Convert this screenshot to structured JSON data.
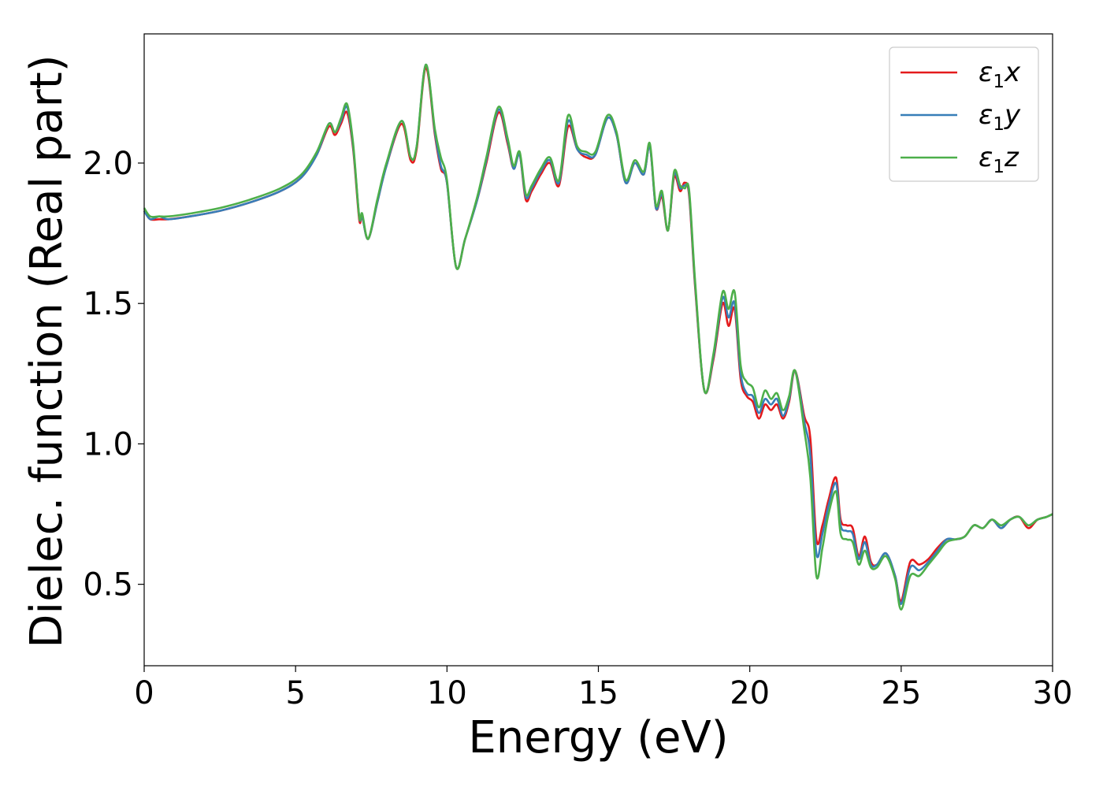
{
  "chart_data": {
    "type": "line",
    "title": "",
    "xlabel": "Energy (eV)",
    "ylabel": "Dielec. function (Real part)",
    "xlim": [
      0,
      30
    ],
    "ylim": [
      0.21,
      2.46
    ],
    "xticks": [
      0,
      5,
      10,
      15,
      20,
      25,
      30
    ],
    "xtick_labels": [
      "0",
      "5",
      "10",
      "15",
      "20",
      "25",
      "30"
    ],
    "yticks": [
      0.5,
      1.0,
      1.5,
      2.0
    ],
    "ytick_labels": [
      "0.5",
      "1.0",
      "1.5",
      "2.0"
    ],
    "grid": false,
    "legend_position": "top-right",
    "series": [
      {
        "name": "ε1x",
        "legend_base": "ε",
        "legend_sub": "1",
        "legend_suffix": "x",
        "color": "#e41a1c",
        "x": [
          0,
          0.2,
          0.5,
          0.8,
          1.5,
          2.5,
          3.5,
          4.5,
          5.2,
          5.7,
          6.1,
          6.3,
          6.5,
          6.7,
          6.9,
          7.1,
          7.2,
          7.4,
          7.7,
          8.0,
          8.5,
          8.8,
          9.0,
          9.3,
          9.6,
          9.8,
          10.0,
          10.3,
          10.6,
          11.0,
          11.3,
          11.7,
          12.0,
          12.2,
          12.4,
          12.6,
          12.8,
          13.1,
          13.4,
          13.7,
          14.0,
          14.3,
          14.6,
          14.9,
          15.3,
          15.6,
          15.9,
          16.2,
          16.5,
          16.7,
          16.9,
          17.1,
          17.3,
          17.5,
          17.7,
          17.85,
          18.0,
          18.2,
          18.5,
          18.8,
          19.1,
          19.3,
          19.5,
          19.7,
          19.9,
          20.1,
          20.3,
          20.5,
          20.7,
          20.9,
          21.1,
          21.3,
          21.5,
          21.8,
          22.0,
          22.2,
          22.4,
          22.6,
          22.85,
          23.0,
          23.2,
          23.4,
          23.6,
          23.8,
          24.0,
          24.2,
          24.5,
          24.8,
          25.0,
          25.3,
          25.6,
          25.9,
          26.2,
          26.5,
          26.8,
          27.1,
          27.4,
          27.7,
          28.0,
          28.3,
          28.6,
          28.9,
          29.2,
          29.5,
          29.8,
          30.0
        ],
        "values": [
          1.83,
          1.8,
          1.8,
          1.8,
          1.81,
          1.83,
          1.86,
          1.9,
          1.95,
          2.03,
          2.13,
          2.1,
          2.14,
          2.18,
          2.05,
          1.8,
          1.81,
          1.73,
          1.86,
          1.99,
          2.14,
          2.01,
          2.05,
          2.34,
          2.1,
          1.98,
          1.93,
          1.63,
          1.73,
          1.87,
          2.0,
          2.18,
          2.07,
          1.98,
          2.03,
          1.87,
          1.9,
          1.96,
          2.0,
          1.92,
          2.13,
          2.05,
          2.02,
          2.03,
          2.16,
          2.1,
          1.93,
          2.0,
          1.96,
          2.06,
          1.84,
          1.88,
          1.76,
          1.95,
          1.9,
          1.93,
          1.88,
          1.55,
          1.19,
          1.3,
          1.5,
          1.42,
          1.48,
          1.23,
          1.17,
          1.15,
          1.09,
          1.14,
          1.12,
          1.14,
          1.09,
          1.15,
          1.26,
          1.1,
          1.02,
          0.66,
          0.71,
          0.8,
          0.88,
          0.73,
          0.71,
          0.7,
          0.6,
          0.67,
          0.58,
          0.57,
          0.61,
          0.53,
          0.44,
          0.58,
          0.57,
          0.59,
          0.63,
          0.66,
          0.66,
          0.67,
          0.71,
          0.7,
          0.73,
          0.7,
          0.73,
          0.74,
          0.7,
          0.73,
          0.74,
          0.75
        ]
      },
      {
        "name": "ε1y",
        "legend_base": "ε",
        "legend_sub": "1",
        "legend_suffix": "y",
        "color": "#377eb8",
        "x": [
          0,
          0.2,
          0.5,
          0.8,
          1.5,
          2.5,
          3.5,
          4.5,
          5.2,
          5.7,
          6.1,
          6.3,
          6.5,
          6.7,
          6.9,
          7.1,
          7.2,
          7.4,
          7.7,
          8.0,
          8.5,
          8.8,
          9.0,
          9.3,
          9.6,
          9.8,
          10.0,
          10.3,
          10.6,
          11.0,
          11.3,
          11.7,
          12.0,
          12.2,
          12.4,
          12.6,
          12.8,
          13.1,
          13.4,
          13.7,
          14.0,
          14.3,
          14.6,
          14.9,
          15.3,
          15.6,
          15.9,
          16.2,
          16.5,
          16.7,
          16.9,
          17.1,
          17.3,
          17.5,
          17.7,
          17.85,
          18.0,
          18.2,
          18.5,
          18.8,
          19.1,
          19.3,
          19.5,
          19.7,
          19.9,
          20.1,
          20.3,
          20.5,
          20.7,
          20.9,
          21.1,
          21.3,
          21.5,
          21.8,
          22.0,
          22.2,
          22.4,
          22.6,
          22.85,
          23.0,
          23.2,
          23.4,
          23.6,
          23.8,
          24.0,
          24.2,
          24.5,
          24.8,
          25.0,
          25.3,
          25.6,
          25.9,
          26.2,
          26.5,
          26.8,
          27.1,
          27.4,
          27.7,
          28.0,
          28.3,
          28.6,
          28.9,
          29.2,
          29.5,
          29.8,
          30.0
        ],
        "values": [
          1.83,
          1.8,
          1.81,
          1.8,
          1.81,
          1.83,
          1.86,
          1.9,
          1.95,
          2.03,
          2.14,
          2.11,
          2.15,
          2.2,
          2.06,
          1.81,
          1.81,
          1.73,
          1.86,
          1.99,
          2.15,
          2.02,
          2.06,
          2.35,
          2.11,
          1.99,
          1.93,
          1.63,
          1.73,
          1.87,
          2.01,
          2.19,
          2.08,
          1.98,
          2.03,
          1.88,
          1.91,
          1.97,
          2.01,
          1.93,
          2.15,
          2.05,
          2.03,
          2.03,
          2.16,
          2.1,
          1.93,
          2.0,
          1.96,
          2.06,
          1.84,
          1.89,
          1.76,
          1.96,
          1.91,
          1.92,
          1.89,
          1.56,
          1.19,
          1.31,
          1.52,
          1.45,
          1.5,
          1.25,
          1.18,
          1.17,
          1.11,
          1.16,
          1.14,
          1.16,
          1.1,
          1.16,
          1.26,
          1.08,
          0.96,
          0.61,
          0.68,
          0.78,
          0.86,
          0.71,
          0.69,
          0.68,
          0.59,
          0.65,
          0.57,
          0.57,
          0.61,
          0.53,
          0.43,
          0.56,
          0.55,
          0.58,
          0.62,
          0.66,
          0.66,
          0.67,
          0.71,
          0.7,
          0.73,
          0.7,
          0.73,
          0.74,
          0.71,
          0.73,
          0.74,
          0.75
        ]
      },
      {
        "name": "ε1z",
        "legend_base": "ε",
        "legend_sub": "1",
        "legend_suffix": "z",
        "color": "#4daf4a",
        "x": [
          0,
          0.2,
          0.5,
          0.8,
          1.5,
          2.5,
          3.5,
          4.5,
          5.2,
          5.7,
          6.1,
          6.3,
          6.5,
          6.7,
          6.9,
          7.1,
          7.2,
          7.4,
          7.7,
          8.0,
          8.5,
          8.8,
          9.0,
          9.3,
          9.6,
          9.8,
          10.0,
          10.3,
          10.6,
          11.0,
          11.3,
          11.7,
          12.0,
          12.2,
          12.4,
          12.6,
          12.8,
          13.1,
          13.4,
          13.7,
          14.0,
          14.3,
          14.6,
          14.9,
          15.3,
          15.6,
          15.9,
          16.2,
          16.5,
          16.7,
          16.9,
          17.1,
          17.3,
          17.5,
          17.7,
          17.85,
          18.0,
          18.2,
          18.5,
          18.8,
          19.1,
          19.3,
          19.5,
          19.7,
          19.9,
          20.1,
          20.3,
          20.5,
          20.7,
          20.9,
          21.1,
          21.3,
          21.5,
          21.8,
          22.0,
          22.2,
          22.4,
          22.6,
          22.85,
          23.0,
          23.2,
          23.4,
          23.6,
          23.8,
          24.0,
          24.2,
          24.5,
          24.8,
          25.0,
          25.3,
          25.6,
          25.9,
          26.2,
          26.5,
          26.8,
          27.1,
          27.4,
          27.7,
          28.0,
          28.3,
          28.6,
          28.9,
          29.2,
          29.5,
          29.8,
          30.0
        ],
        "values": [
          1.84,
          1.81,
          1.81,
          1.81,
          1.82,
          1.84,
          1.87,
          1.91,
          1.96,
          2.04,
          2.14,
          2.11,
          2.16,
          2.21,
          2.07,
          1.81,
          1.82,
          1.73,
          1.87,
          2.0,
          2.15,
          2.02,
          2.06,
          2.35,
          2.12,
          2.02,
          1.94,
          1.63,
          1.73,
          1.88,
          2.02,
          2.2,
          2.09,
          1.99,
          2.04,
          1.89,
          1.92,
          1.98,
          2.02,
          1.94,
          2.17,
          2.06,
          2.04,
          2.04,
          2.17,
          2.11,
          1.94,
          2.01,
          1.97,
          2.07,
          1.85,
          1.9,
          1.76,
          1.97,
          1.92,
          1.91,
          1.9,
          1.57,
          1.19,
          1.32,
          1.54,
          1.48,
          1.54,
          1.28,
          1.22,
          1.2,
          1.13,
          1.19,
          1.16,
          1.18,
          1.12,
          1.17,
          1.26,
          1.05,
          0.88,
          0.53,
          0.63,
          0.75,
          0.83,
          0.68,
          0.66,
          0.65,
          0.57,
          0.62,
          0.56,
          0.56,
          0.6,
          0.52,
          0.41,
          0.53,
          0.53,
          0.57,
          0.61,
          0.65,
          0.66,
          0.67,
          0.71,
          0.7,
          0.73,
          0.71,
          0.73,
          0.74,
          0.71,
          0.73,
          0.74,
          0.75
        ]
      }
    ]
  }
}
